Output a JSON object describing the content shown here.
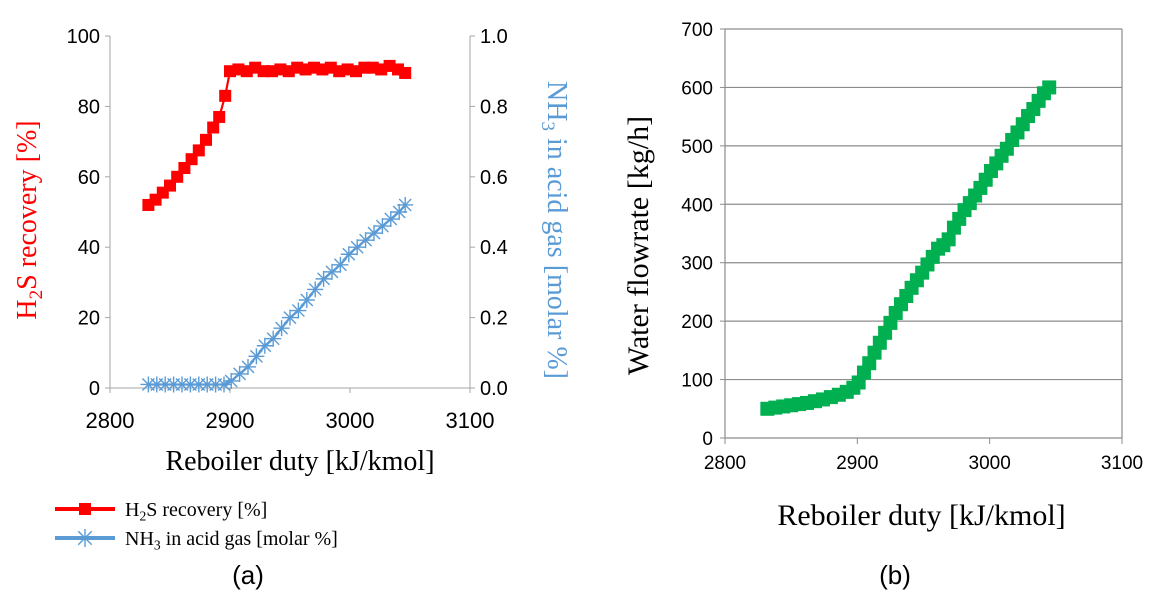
{
  "chart_data": [
    {
      "type": "line",
      "panel_label": "(a)",
      "xlabel": "Reboiler duty [kJ/kmol]",
      "xlim": [
        2800,
        3100
      ],
      "x_ticks": [
        "2800",
        "2900",
        "3000",
        "3100"
      ],
      "y_left": {
        "label_parts": [
          "H",
          "2",
          "S recovery [%]"
        ],
        "lim": [
          0,
          100
        ],
        "ticks": [
          "0",
          "20",
          "40",
          "60",
          "80",
          "100"
        ],
        "color": "#ff0000"
      },
      "y_right": {
        "label_parts": [
          "NH",
          "3",
          " in acid gas [molar %]"
        ],
        "lim": [
          0,
          1.0
        ],
        "ticks": [
          "0.0",
          "0.2",
          "0.4",
          "0.6",
          "0.8",
          "1.0"
        ],
        "color": "#5b9bd5"
      },
      "grid": false,
      "legend": {
        "placement": "bottom-left",
        "entries": [
          {
            "parts": [
              "H",
              "2",
              "S recovery [%]"
            ],
            "color": "#ff0000",
            "marker": "square"
          },
          {
            "parts": [
              "NH",
              "3",
              " in acid gas [molar %]"
            ],
            "color": "#5b9bd5",
            "marker": "asterisk"
          }
        ]
      },
      "series": [
        {
          "axis": "left",
          "color": "#ff0000",
          "marker": "square",
          "x": [
            2832,
            2838,
            2844,
            2850,
            2856,
            2862,
            2868,
            2874,
            2880,
            2886,
            2891,
            2896,
            2900,
            2907,
            2914,
            2921,
            2928,
            2935,
            2942,
            2949,
            2956,
            2963,
            2970,
            2977,
            2984,
            2991,
            2998,
            3005,
            3012,
            3019,
            3026,
            3033,
            3040,
            3046
          ],
          "y": [
            52,
            53.5,
            55.5,
            57.5,
            60,
            62.5,
            65,
            67.5,
            70.5,
            74,
            77,
            83,
            90,
            90.5,
            90,
            91,
            90,
            90,
            90.5,
            90,
            91,
            90.5,
            91,
            90.5,
            91,
            90,
            90.5,
            90,
            91,
            91,
            90.5,
            91.5,
            90.5,
            89.5
          ]
        },
        {
          "axis": "right",
          "color": "#5b9bd5",
          "marker": "asterisk",
          "x": [
            2832,
            2839,
            2846,
            2853,
            2860,
            2867,
            2874,
            2881,
            2888,
            2895,
            2901,
            2908,
            2915,
            2922,
            2929,
            2936,
            2943,
            2950,
            2957,
            2964,
            2971,
            2978,
            2985,
            2992,
            2999,
            3006,
            3013,
            3020,
            3027,
            3034,
            3041,
            3046
          ],
          "y": [
            0.01,
            0.01,
            0.01,
            0.01,
            0.01,
            0.01,
            0.01,
            0.01,
            0.01,
            0.01,
            0.02,
            0.04,
            0.06,
            0.09,
            0.12,
            0.14,
            0.17,
            0.2,
            0.22,
            0.25,
            0.28,
            0.31,
            0.33,
            0.35,
            0.38,
            0.4,
            0.42,
            0.44,
            0.46,
            0.48,
            0.5,
            0.52
          ]
        }
      ]
    },
    {
      "type": "line",
      "panel_label": "(b)",
      "xlabel": "Reboiler duty [kJ/kmol]",
      "ylabel": "Water flowrate [kg/h]",
      "xlim": [
        2800,
        3100
      ],
      "ylim": [
        0,
        700
      ],
      "x_ticks": [
        "2800",
        "2900",
        "3000",
        "3100"
      ],
      "y_ticks": [
        "0",
        "100",
        "200",
        "300",
        "400",
        "500",
        "600",
        "700"
      ],
      "grid": true,
      "series": [
        {
          "color": "#00b050",
          "marker": "square",
          "x": [
            2832,
            2838,
            2844,
            2850,
            2856,
            2862,
            2868,
            2874,
            2880,
            2886,
            2892,
            2897,
            2901,
            2905,
            2909,
            2913,
            2917,
            2921,
            2925,
            2929,
            2933,
            2937,
            2941,
            2945,
            2949,
            2953,
            2957,
            2961,
            2965,
            2969,
            2973,
            2977,
            2981,
            2985,
            2989,
            2993,
            2997,
            3001,
            3005,
            3009,
            3013,
            3017,
            3021,
            3025,
            3029,
            3033,
            3037,
            3041,
            3045
          ],
          "y": [
            50,
            52,
            54,
            56,
            58,
            60,
            63,
            66,
            70,
            74,
            79,
            86,
            95,
            112,
            128,
            146,
            163,
            180,
            197,
            214,
            229,
            243,
            257,
            270,
            283,
            297,
            310,
            324,
            330,
            340,
            360,
            375,
            390,
            402,
            415,
            428,
            442,
            457,
            470,
            483,
            495,
            510,
            523,
            537,
            551,
            563,
            577,
            590,
            600
          ]
        }
      ]
    }
  ]
}
